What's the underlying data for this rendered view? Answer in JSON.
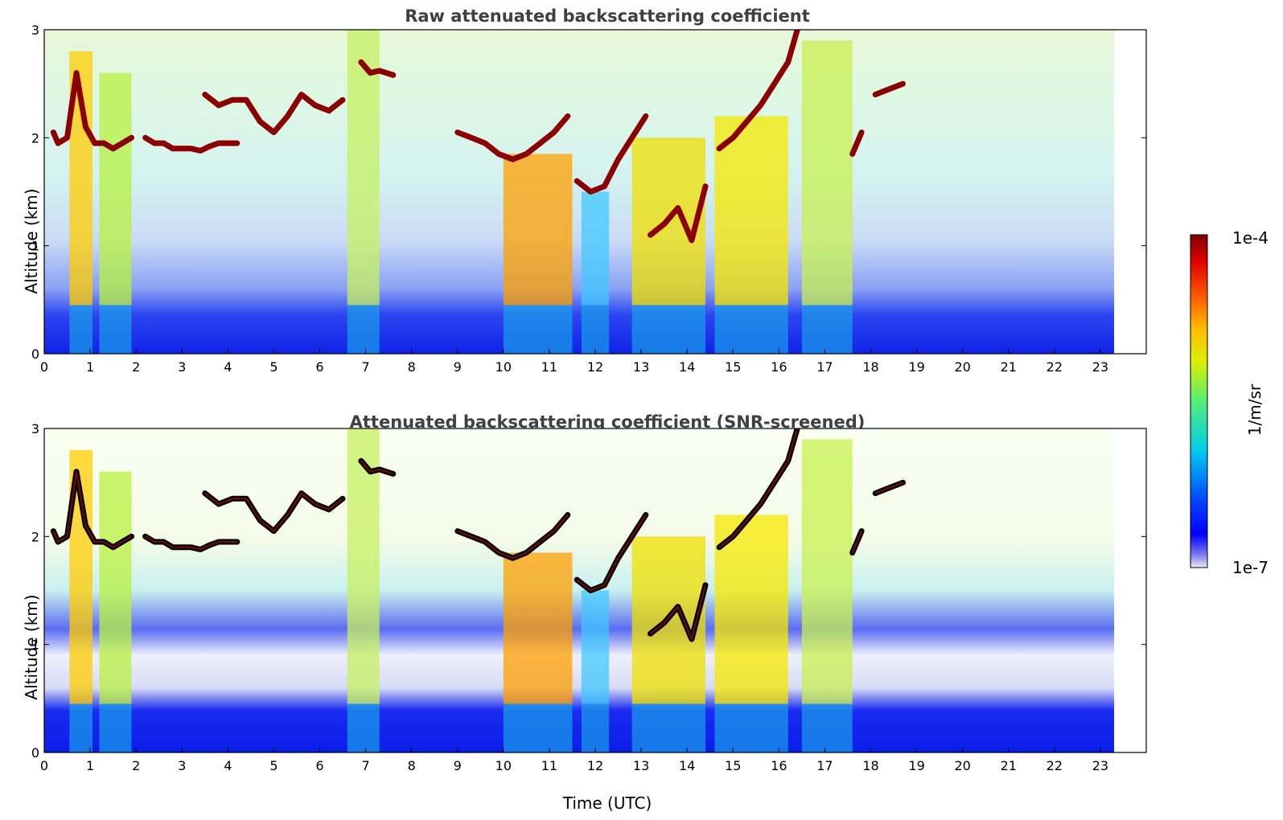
{
  "chart_data": [
    {
      "type": "heatmap",
      "title": "Raw attenuated backscattering coefficient",
      "xlabel": "",
      "ylabel": "Altitude (km)",
      "xlim": [
        0,
        24
      ],
      "ylim": [
        0,
        3
      ],
      "x_ticks": [
        "0",
        "1",
        "2",
        "3",
        "4",
        "5",
        "6",
        "7",
        "8",
        "9",
        "10",
        "11",
        "12",
        "13",
        "14",
        "15",
        "16",
        "17",
        "18",
        "19",
        "20",
        "21",
        "22",
        "23"
      ],
      "y_ticks": [
        "0",
        "1",
        "2",
        "3"
      ],
      "data_extent_hours": [
        0,
        23.3
      ],
      "cloud_layers": [
        {
          "t": [
            0.2,
            0.3,
            0.5,
            0.7,
            0.9,
            1.1,
            1.3,
            1.5,
            1.7,
            1.9
          ],
          "alt": [
            2.05,
            1.95,
            2.0,
            2.6,
            2.1,
            1.95,
            1.95,
            1.9,
            1.95,
            2.0
          ]
        },
        {
          "t": [
            2.2,
            2.4,
            2.6,
            2.8,
            3.0,
            3.2,
            3.4,
            3.6,
            3.8,
            4.0,
            4.2
          ],
          "alt": [
            2.0,
            1.95,
            1.95,
            1.9,
            1.9,
            1.9,
            1.88,
            1.92,
            1.95,
            1.95,
            1.95
          ]
        },
        {
          "t": [
            3.5,
            3.8,
            4.1,
            4.4,
            4.7,
            5.0,
            5.3,
            5.6,
            5.9,
            6.2,
            6.5
          ],
          "alt": [
            2.4,
            2.3,
            2.35,
            2.35,
            2.15,
            2.05,
            2.2,
            2.4,
            2.3,
            2.25,
            2.35
          ]
        },
        {
          "t": [
            6.9,
            7.1,
            7.3,
            7.6
          ],
          "alt": [
            2.7,
            2.6,
            2.62,
            2.58
          ]
        },
        {
          "t": [
            9.0,
            9.3,
            9.6,
            9.9,
            10.2,
            10.5,
            10.8,
            11.1,
            11.4
          ],
          "alt": [
            2.05,
            2.0,
            1.95,
            1.85,
            1.8,
            1.85,
            1.95,
            2.05,
            2.2
          ]
        },
        {
          "t": [
            11.6,
            11.9,
            12.2,
            12.5,
            12.8,
            13.1
          ],
          "alt": [
            1.6,
            1.5,
            1.55,
            1.8,
            2.0,
            2.2
          ]
        },
        {
          "t": [
            13.2,
            13.5,
            13.8,
            14.1,
            14.4
          ],
          "alt": [
            1.1,
            1.2,
            1.35,
            1.05,
            1.55
          ]
        },
        {
          "t": [
            14.7,
            15.0,
            15.3,
            15.6,
            15.9,
            16.2,
            16.4
          ],
          "alt": [
            1.9,
            2.0,
            2.15,
            2.3,
            2.5,
            2.7,
            3.0
          ]
        },
        {
          "t": [
            17.6,
            17.8
          ],
          "alt": [
            1.85,
            2.05
          ]
        },
        {
          "t": [
            18.1,
            18.4,
            18.7
          ],
          "alt": [
            2.4,
            2.45,
            2.5
          ]
        }
      ]
    },
    {
      "type": "heatmap",
      "title": "Attenuated backscattering coefficient (SNR-screened)",
      "xlabel": "Time (UTC)",
      "ylabel": "Altitude (km)",
      "xlim": [
        0,
        24
      ],
      "ylim": [
        0,
        3
      ],
      "x_ticks": [
        "0",
        "1",
        "2",
        "3",
        "4",
        "5",
        "6",
        "7",
        "8",
        "9",
        "10",
        "11",
        "12",
        "13",
        "14",
        "15",
        "16",
        "17",
        "18",
        "19",
        "20",
        "21",
        "22",
        "23"
      ],
      "y_ticks": [
        "0",
        "1",
        "2",
        "3"
      ],
      "data_extent_hours": [
        0,
        23.3
      ],
      "cloud_layers": "same as raw panel"
    }
  ],
  "colorbar": {
    "label": "1/m/sr",
    "max_label": "1e-4",
    "min_label": "1e-7",
    "colormap": "jet",
    "top_color": "#7f0000",
    "bottom_color": "#e8e8f8"
  }
}
